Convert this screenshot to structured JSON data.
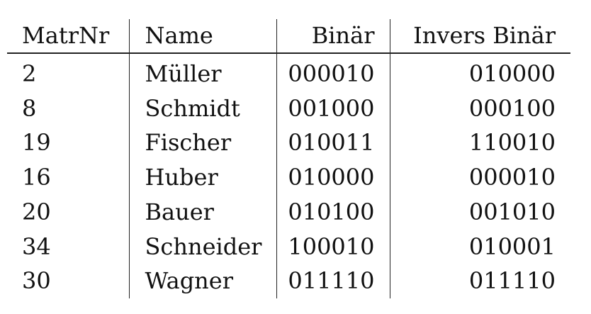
{
  "table": {
    "headers": [
      "MatrNr",
      "Name",
      "Binär",
      "Invers Binär"
    ],
    "rows": [
      [
        "2",
        "Müller",
        "000010",
        "010000"
      ],
      [
        "8",
        "Schmidt",
        "001000",
        "000100"
      ],
      [
        "19",
        "Fischer",
        "010011",
        "110010"
      ],
      [
        "16",
        "Huber",
        "010000",
        "000010"
      ],
      [
        "20",
        "Bauer",
        "010100",
        "001010"
      ],
      [
        "34",
        "Schneider",
        "100010",
        "010001"
      ],
      [
        "30",
        "Wagner",
        "011110",
        "011110"
      ]
    ]
  }
}
